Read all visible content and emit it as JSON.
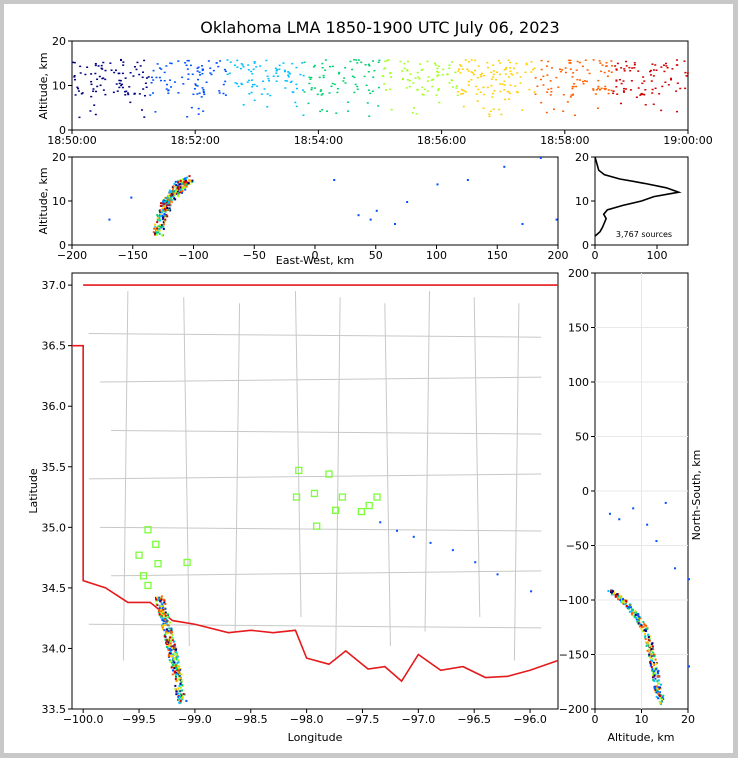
{
  "figure": {
    "title": "Oklahoma LMA 1850-1900 UTC July 06, 2023",
    "source_count_label": "3,767 sources"
  },
  "colors": {
    "state_border": "#e41a1c",
    "county_lines": "#c8c8c8",
    "station_marker": "#7cfc3a",
    "time_scale": [
      "#000080",
      "#0050ff",
      "#00c0ff",
      "#00d070",
      "#a0ff20",
      "#ffd000",
      "#ff6000",
      "#d00000"
    ]
  },
  "chart_data": [
    {
      "id": "time_height",
      "type": "scatter",
      "xlabel": "",
      "ylabel": "Altitude, km",
      "xlim": [
        "18:50:00",
        "19:00:00"
      ],
      "ylim": [
        0,
        20
      ],
      "x_tick_labels": [
        "18:50:00",
        "18:52:00",
        "18:54:00",
        "18:56:00",
        "18:58:00",
        "19:00:00"
      ],
      "y_tick_labels": [
        "0",
        "10",
        "20"
      ],
      "typical_altitude_km": [
        8,
        16
      ]
    },
    {
      "id": "ew_height",
      "type": "scatter",
      "xlabel": "East-West, km",
      "ylabel": "Altitude, km",
      "xlim": [
        -200,
        200
      ],
      "ylim": [
        0,
        20
      ],
      "x_tick_labels": [
        "−200",
        "−150",
        "−100",
        "−50",
        "0",
        "50",
        "100",
        "150",
        "200"
      ],
      "y_tick_labels": [
        "0",
        "10",
        "20"
      ],
      "points": [
        [
          -130,
          3
        ],
        [
          -128,
          6
        ],
        [
          -125,
          8
        ],
        [
          -122,
          10
        ],
        [
          -118,
          12
        ],
        [
          -114,
          13
        ],
        [
          -110,
          14
        ],
        [
          -105,
          15
        ],
        [
          -152,
          11
        ],
        [
          -170,
          6
        ],
        [
          15,
          15
        ],
        [
          35,
          7
        ],
        [
          45,
          6
        ],
        [
          50,
          8
        ],
        [
          65,
          5
        ],
        [
          75,
          10
        ],
        [
          100,
          14
        ],
        [
          125,
          15
        ],
        [
          155,
          18
        ],
        [
          170,
          5
        ],
        [
          185,
          20
        ],
        [
          198,
          6
        ]
      ]
    },
    {
      "id": "altitude_histogram",
      "type": "line",
      "xlabel": "",
      "ylabel": "",
      "xlim": [
        0,
        150
      ],
      "ylim": [
        0,
        20
      ],
      "x_tick_labels": [
        "0",
        "100"
      ],
      "y_tick_labels": [
        "0",
        "10",
        "20"
      ],
      "profile": [
        [
          0,
          2
        ],
        [
          4,
          2.5
        ],
        [
          8,
          3
        ],
        [
          12,
          4
        ],
        [
          15,
          5
        ],
        [
          18,
          6
        ],
        [
          14,
          7
        ],
        [
          20,
          8
        ],
        [
          45,
          9
        ],
        [
          75,
          10
        ],
        [
          95,
          11
        ],
        [
          135,
          12
        ],
        [
          115,
          13
        ],
        [
          80,
          14
        ],
        [
          40,
          15
        ],
        [
          15,
          16
        ],
        [
          6,
          17
        ],
        [
          4,
          18
        ],
        [
          2,
          19
        ],
        [
          0,
          20
        ]
      ]
    },
    {
      "id": "plan_view",
      "type": "scatter",
      "xlabel": "Longitude",
      "ylabel": "Latitude",
      "xlim": [
        -100.1,
        -95.75
      ],
      "ylim": [
        33.5,
        37.1
      ],
      "x_tick_labels": [
        "−100.0",
        "−99.5",
        "−99.0",
        "−98.5",
        "−98.0",
        "−97.5",
        "−97.0",
        "−96.5",
        "−96.0"
      ],
      "y_tick_labels": [
        "33.5",
        "34.0",
        "34.5",
        "35.0",
        "35.5",
        "36.0",
        "36.5",
        "37.0"
      ],
      "stations": [
        [
          -98.07,
          35.47
        ],
        [
          -97.8,
          35.44
        ],
        [
          -98.09,
          35.25
        ],
        [
          -97.93,
          35.28
        ],
        [
          -97.68,
          35.25
        ],
        [
          -97.37,
          35.25
        ],
        [
          -97.44,
          35.18
        ],
        [
          -97.74,
          35.14
        ],
        [
          -97.51,
          35.13
        ],
        [
          -97.91,
          35.01
        ],
        [
          -99.42,
          34.98
        ],
        [
          -99.35,
          34.86
        ],
        [
          -99.5,
          34.77
        ],
        [
          -99.33,
          34.7
        ],
        [
          -99.07,
          34.71
        ],
        [
          -99.46,
          34.6
        ],
        [
          -99.42,
          34.52
        ]
      ],
      "lightning_path": [
        [
          -99.33,
          34.44
        ],
        [
          -99.27,
          34.22
        ],
        [
          -99.22,
          34.02
        ],
        [
          -99.17,
          33.8
        ],
        [
          -99.12,
          33.55
        ]
      ]
    },
    {
      "id": "ns_height",
      "type": "scatter",
      "xlabel": "Altitude, km",
      "ylabel": "North-South, km",
      "xlim": [
        0,
        20
      ],
      "ylim": [
        -200,
        200
      ],
      "x_tick_labels": [
        "0",
        "10",
        "20"
      ],
      "y_tick_labels": [
        "−200",
        "−150",
        "−100",
        "−50",
        "0",
        "50",
        "100",
        "150",
        "200"
      ],
      "points": [
        [
          3,
          -90
        ],
        [
          6,
          -100
        ],
        [
          9,
          -115
        ],
        [
          11,
          -130
        ],
        [
          12,
          -150
        ],
        [
          13,
          -170
        ],
        [
          14,
          -195
        ],
        [
          3,
          -20
        ],
        [
          5,
          -25
        ],
        [
          8,
          -15
        ],
        [
          11,
          -30
        ],
        [
          13,
          -45
        ],
        [
          15,
          -10
        ],
        [
          17,
          -70
        ],
        [
          20,
          -80
        ],
        [
          20,
          -160
        ]
      ]
    }
  ]
}
